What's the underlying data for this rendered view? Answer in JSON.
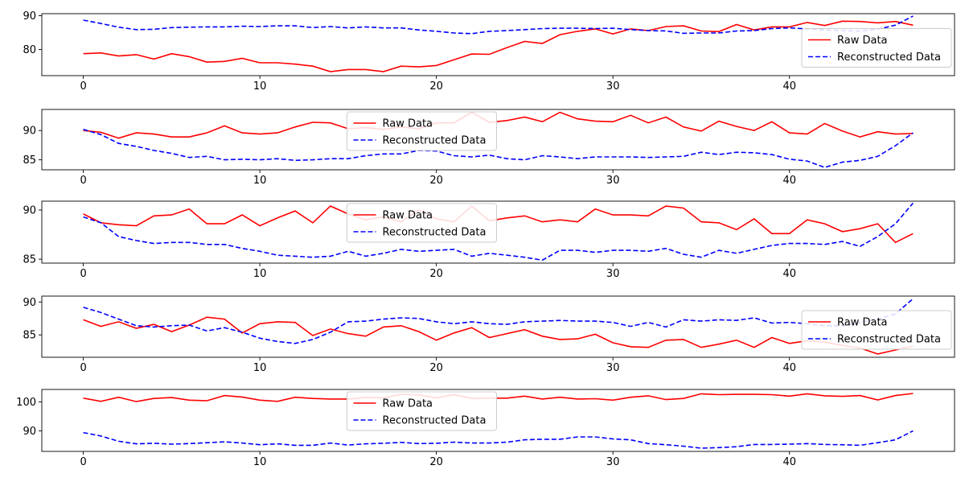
{
  "legend": {
    "raw_label": "Raw Data",
    "reconstructed_label": "Reconstructed Data"
  },
  "colors": {
    "raw": "#ff0000",
    "reconstructed": "#0000ff"
  },
  "chart_data": [
    {
      "type": "line",
      "xlim": [
        -2.35,
        49.35
      ],
      "ylim": [
        72.3,
        90.6
      ],
      "xticks": [
        0,
        10,
        20,
        30,
        40
      ],
      "yticks": [
        80,
        90
      ],
      "legend_position": "center-right",
      "x": [
        0,
        1,
        2,
        3,
        4,
        5,
        6,
        7,
        8,
        9,
        10,
        11,
        12,
        13,
        14,
        15,
        16,
        17,
        18,
        19,
        20,
        21,
        22,
        23,
        24,
        25,
        26,
        27,
        28,
        29,
        30,
        31,
        32,
        33,
        34,
        35,
        36,
        37,
        38,
        39,
        40,
        41,
        42,
        43,
        44,
        45,
        46,
        47
      ],
      "series": [
        {
          "name": "Raw Data",
          "style": "solid",
          "values": [
            78.8,
            79.0,
            78.1,
            78.5,
            77.2,
            78.8,
            77.9,
            76.3,
            76.5,
            77.4,
            76.1,
            76.1,
            75.7,
            75.1,
            73.5,
            74.1,
            74.1,
            73.5,
            75.1,
            74.9,
            75.3,
            77.0,
            78.7,
            78.6,
            80.6,
            82.4,
            81.8,
            84.4,
            85.4,
            86.1,
            84.6,
            86.1,
            85.6,
            86.8,
            87.0,
            85.5,
            85.3,
            87.4,
            85.8,
            86.7,
            86.7,
            88.0,
            87.1,
            88.4,
            88.3,
            87.9,
            88.3,
            87.2
          ]
        },
        {
          "name": "Reconstructed Data",
          "style": "dashed",
          "values": [
            88.7,
            87.7,
            86.6,
            85.9,
            86.0,
            86.5,
            86.6,
            86.7,
            86.7,
            86.9,
            86.8,
            87.0,
            87.0,
            86.5,
            86.8,
            86.4,
            86.7,
            86.4,
            86.4,
            85.8,
            85.4,
            84.9,
            84.7,
            85.4,
            85.6,
            85.9,
            86.2,
            86.3,
            86.3,
            86.2,
            86.3,
            85.9,
            85.6,
            85.5,
            84.8,
            84.9,
            84.9,
            85.5,
            85.6,
            86.2,
            86.4,
            86.1,
            85.8,
            85.6,
            85.5,
            86.0,
            87.2,
            89.9
          ]
        }
      ]
    },
    {
      "type": "line",
      "xlim": [
        -2.35,
        49.35
      ],
      "ylim": [
        83.3,
        93.6
      ],
      "xticks": [
        0,
        10,
        20,
        30,
        40
      ],
      "yticks": [
        85,
        90
      ],
      "legend_position": "top-center",
      "x": [
        0,
        1,
        2,
        3,
        4,
        5,
        6,
        7,
        8,
        9,
        10,
        11,
        12,
        13,
        14,
        15,
        16,
        17,
        18,
        19,
        20,
        21,
        22,
        23,
        24,
        25,
        26,
        27,
        28,
        29,
        30,
        31,
        32,
        33,
        34,
        35,
        36,
        37,
        38,
        39,
        40,
        41,
        42,
        43,
        44,
        45,
        46,
        47
      ],
      "series": [
        {
          "name": "Raw Data",
          "style": "solid",
          "values": [
            90.0,
            89.7,
            88.7,
            89.6,
            89.4,
            88.9,
            88.9,
            89.6,
            90.8,
            89.6,
            89.4,
            89.6,
            90.6,
            91.4,
            91.3,
            90.3,
            90.5,
            90.2,
            90.6,
            90.3,
            91.3,
            91.3,
            93.1,
            91.4,
            91.7,
            92.3,
            91.5,
            93.1,
            92.0,
            91.6,
            91.5,
            92.6,
            91.3,
            92.3,
            90.6,
            89.9,
            91.6,
            90.7,
            90.0,
            91.5,
            89.6,
            89.4,
            91.2,
            89.9,
            88.9,
            89.8,
            89.4,
            89.5
          ]
        },
        {
          "name": "Reconstructed Data",
          "style": "dashed",
          "values": [
            90.2,
            89.3,
            87.8,
            87.3,
            86.6,
            86.1,
            85.4,
            85.6,
            85.0,
            85.1,
            85.0,
            85.2,
            84.9,
            85.0,
            85.2,
            85.2,
            85.7,
            86.0,
            86.0,
            86.6,
            86.5,
            85.7,
            85.5,
            85.8,
            85.2,
            85.0,
            85.7,
            85.5,
            85.2,
            85.5,
            85.5,
            85.5,
            85.4,
            85.5,
            85.6,
            86.3,
            85.9,
            86.3,
            86.2,
            85.9,
            85.1,
            84.8,
            83.7,
            84.6,
            84.9,
            85.6,
            87.4,
            89.6
          ]
        }
      ]
    },
    {
      "type": "line",
      "xlim": [
        -2.35,
        49.35
      ],
      "ylim": [
        84.6,
        90.9
      ],
      "xticks": [
        0,
        10,
        20,
        30,
        40
      ],
      "yticks": [
        85,
        90
      ],
      "legend_position": "top-center",
      "x": [
        0,
        1,
        2,
        3,
        4,
        5,
        6,
        7,
        8,
        9,
        10,
        11,
        12,
        13,
        14,
        15,
        16,
        17,
        18,
        19,
        20,
        21,
        22,
        23,
        24,
        25,
        26,
        27,
        28,
        29,
        30,
        31,
        32,
        33,
        34,
        35,
        36,
        37,
        38,
        39,
        40,
        41,
        42,
        43,
        44,
        45,
        46,
        47
      ],
      "series": [
        {
          "name": "Raw Data",
          "style": "solid",
          "values": [
            89.6,
            88.7,
            88.5,
            88.4,
            89.4,
            89.5,
            90.1,
            88.6,
            88.6,
            89.5,
            88.4,
            89.2,
            89.9,
            88.7,
            90.4,
            89.6,
            89.0,
            89.3,
            88.8,
            90.0,
            89.1,
            88.8,
            90.4,
            88.9,
            89.2,
            89.4,
            88.8,
            89.0,
            88.8,
            90.1,
            89.5,
            89.5,
            89.4,
            90.4,
            90.2,
            88.8,
            88.7,
            88.0,
            89.1,
            87.6,
            87.6,
            89.0,
            88.6,
            87.8,
            88.1,
            88.6,
            86.7,
            87.6
          ]
        },
        {
          "name": "Reconstructed Data",
          "style": "dashed",
          "values": [
            89.3,
            88.7,
            87.3,
            86.9,
            86.6,
            86.7,
            86.7,
            86.5,
            86.5,
            86.1,
            85.8,
            85.4,
            85.3,
            85.2,
            85.3,
            85.8,
            85.3,
            85.6,
            86.0,
            85.8,
            85.9,
            86.0,
            85.3,
            85.6,
            85.4,
            85.2,
            84.9,
            85.9,
            85.9,
            85.7,
            85.9,
            85.9,
            85.8,
            86.1,
            85.5,
            85.2,
            85.9,
            85.6,
            86.0,
            86.4,
            86.6,
            86.6,
            86.5,
            86.8,
            86.3,
            87.3,
            88.6,
            90.7
          ]
        }
      ]
    },
    {
      "type": "line",
      "xlim": [
        -2.35,
        49.35
      ],
      "ylim": [
        81.6,
        90.9
      ],
      "xticks": [
        0,
        10,
        20,
        30,
        40
      ],
      "yticks": [
        85,
        90
      ],
      "legend_position": "center-right",
      "x": [
        0,
        1,
        2,
        3,
        4,
        5,
        6,
        7,
        8,
        9,
        10,
        11,
        12,
        13,
        14,
        15,
        16,
        17,
        18,
        19,
        20,
        21,
        22,
        23,
        24,
        25,
        26,
        27,
        28,
        29,
        30,
        31,
        32,
        33,
        34,
        35,
        36,
        37,
        38,
        39,
        40,
        41,
        42,
        43,
        44,
        45,
        46,
        47
      ],
      "series": [
        {
          "name": "Raw Data",
          "style": "solid",
          "values": [
            87.3,
            86.3,
            87.0,
            86.0,
            86.6,
            85.5,
            86.5,
            87.7,
            87.4,
            85.3,
            86.7,
            87.0,
            86.9,
            84.9,
            85.9,
            85.2,
            84.8,
            86.2,
            86.4,
            85.5,
            84.2,
            85.3,
            86.1,
            84.6,
            85.2,
            85.8,
            84.8,
            84.3,
            84.4,
            85.1,
            83.8,
            83.2,
            83.1,
            84.2,
            84.3,
            83.1,
            83.6,
            84.2,
            83.1,
            84.6,
            83.7,
            84.1,
            83.9,
            83.4,
            83.0,
            82.1,
            82.7,
            83.3
          ]
        },
        {
          "name": "Reconstructed Data",
          "style": "dashed",
          "values": [
            89.2,
            88.4,
            87.4,
            86.4,
            86.2,
            86.4,
            86.5,
            85.6,
            86.1,
            85.4,
            84.5,
            84.0,
            83.7,
            84.3,
            85.4,
            87.0,
            87.1,
            87.4,
            87.6,
            87.5,
            87.0,
            86.7,
            87.0,
            86.7,
            86.6,
            87.0,
            87.1,
            87.2,
            87.1,
            87.1,
            86.9,
            86.3,
            86.9,
            86.2,
            87.3,
            87.1,
            87.3,
            87.2,
            87.6,
            86.8,
            86.9,
            86.7,
            86.4,
            86.4,
            86.9,
            87.4,
            88.2,
            90.5
          ]
        }
      ]
    },
    {
      "type": "line",
      "xlim": [
        -2.35,
        49.35
      ],
      "ylim": [
        82.9,
        104.3
      ],
      "xticks": [
        0,
        10,
        20,
        30,
        40
      ],
      "yticks": [
        90,
        100
      ],
      "legend_position": "top-center",
      "x": [
        0,
        1,
        2,
        3,
        4,
        5,
        6,
        7,
        8,
        9,
        10,
        11,
        12,
        13,
        14,
        15,
        16,
        17,
        18,
        19,
        20,
        21,
        22,
        23,
        24,
        25,
        26,
        27,
        28,
        29,
        30,
        31,
        32,
        33,
        34,
        35,
        36,
        37,
        38,
        39,
        40,
        41,
        42,
        43,
        44,
        45,
        46,
        47
      ],
      "series": [
        {
          "name": "Raw Data",
          "style": "solid",
          "values": [
            101.3,
            100.2,
            101.6,
            100.1,
            101.2,
            101.5,
            100.6,
            100.4,
            102.2,
            101.7,
            100.6,
            100.2,
            101.6,
            101.2,
            101.0,
            101.0,
            101.5,
            101.4,
            102.6,
            102.4,
            101.4,
            102.5,
            101.2,
            101.3,
            101.3,
            102.0,
            101.0,
            101.6,
            101.0,
            101.1,
            100.6,
            101.6,
            102.1,
            100.8,
            101.2,
            102.8,
            102.5,
            102.6,
            102.6,
            102.5,
            102.0,
            102.8,
            102.1,
            101.9,
            102.2,
            100.7,
            102.2,
            102.9
          ]
        },
        {
          "name": "Reconstructed Data",
          "style": "dashed",
          "values": [
            89.4,
            88.2,
            86.4,
            85.5,
            85.7,
            85.4,
            85.6,
            85.9,
            86.2,
            85.8,
            85.2,
            85.5,
            85.0,
            85.0,
            85.8,
            85.1,
            85.5,
            85.7,
            86.0,
            85.6,
            85.7,
            86.1,
            85.8,
            85.8,
            86.1,
            86.9,
            87.1,
            87.1,
            87.9,
            87.9,
            87.2,
            86.9,
            85.6,
            85.2,
            84.7,
            84.0,
            84.2,
            84.5,
            85.3,
            85.3,
            85.4,
            85.6,
            85.3,
            85.2,
            85.0,
            85.9,
            86.9,
            90.0
          ]
        }
      ]
    }
  ]
}
